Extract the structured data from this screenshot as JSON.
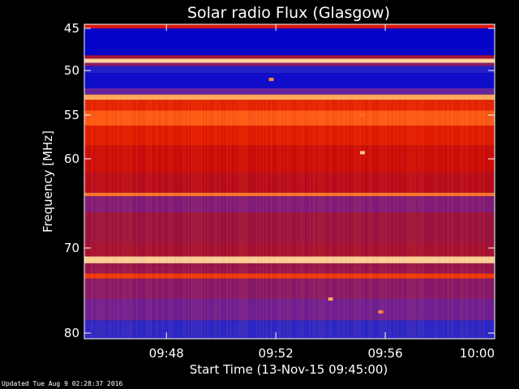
{
  "chart_data": {
    "type": "heatmap",
    "title": "Solar radio Flux (Glasgow)",
    "xlabel": "Start Time (13-Nov-15 09:45:00)",
    "ylabel": "Frequency [MHz]",
    "x_ticks": [
      "09:48",
      "09:52",
      "09:56",
      "10:00"
    ],
    "y_ticks": [
      "45",
      "50",
      "55",
      "60",
      "70",
      "80"
    ],
    "xlim": [
      "09:45:00",
      "10:00:00"
    ],
    "ylim": [
      44.5,
      80.5
    ],
    "colormap": [
      "#000050",
      "#0000c8",
      "#3a32c8",
      "#7a1e8c",
      "#a0143c",
      "#c80a0a",
      "#e61e00",
      "#ff5a14",
      "#ffa050",
      "#ffe6b4"
    ],
    "bands": [
      {
        "from": 44.5,
        "to": 45.0,
        "level": 0.62
      },
      {
        "from": 45.0,
        "to": 48.2,
        "level": 0.12
      },
      {
        "from": 48.2,
        "to": 48.6,
        "level": 0.45
      },
      {
        "from": 48.6,
        "to": 49.1,
        "level": 0.97
      },
      {
        "from": 49.1,
        "to": 49.5,
        "level": 0.38
      },
      {
        "from": 49.5,
        "to": 50.3,
        "level": 0.18
      },
      {
        "from": 50.3,
        "to": 52.0,
        "level": 0.14
      },
      {
        "from": 52.0,
        "to": 52.7,
        "level": 0.3
      },
      {
        "from": 52.7,
        "to": 53.3,
        "level": 0.9
      },
      {
        "from": 53.3,
        "to": 54.5,
        "level": 0.68
      },
      {
        "from": 54.5,
        "to": 56.2,
        "level": 0.78
      },
      {
        "from": 56.2,
        "to": 58.5,
        "level": 0.66
      },
      {
        "from": 58.5,
        "to": 61.5,
        "level": 0.58
      },
      {
        "from": 61.5,
        "to": 63.8,
        "level": 0.52
      },
      {
        "from": 63.8,
        "to": 64.2,
        "level": 0.82
      },
      {
        "from": 64.2,
        "to": 66.0,
        "level": 0.36
      },
      {
        "from": 66.0,
        "to": 69.5,
        "level": 0.44
      },
      {
        "from": 69.5,
        "to": 71.0,
        "level": 0.47
      },
      {
        "from": 71.0,
        "to": 71.8,
        "level": 0.97
      },
      {
        "from": 71.8,
        "to": 73.0,
        "level": 0.42
      },
      {
        "from": 73.0,
        "to": 73.6,
        "level": 0.72
      },
      {
        "from": 73.6,
        "to": 76.0,
        "level": 0.38
      },
      {
        "from": 76.0,
        "to": 78.5,
        "level": 0.32
      },
      {
        "from": 78.5,
        "to": 80.5,
        "level": 0.2
      }
    ],
    "features": [
      {
        "time": "09:51:50",
        "freq": 51.0,
        "level": 0.85
      },
      {
        "time": "09:55:10",
        "freq": 59.3,
        "level": 0.95
      },
      {
        "time": "09:55:10",
        "freq": 55.0,
        "level": 0.8
      },
      {
        "time": "09:54:00",
        "freq": 76.0,
        "level": 0.9
      },
      {
        "time": "09:55:50",
        "freq": 77.5,
        "level": 0.85
      }
    ]
  },
  "footer": {
    "updated": "Updated Tue Aug  9 02:28:37 2016"
  }
}
